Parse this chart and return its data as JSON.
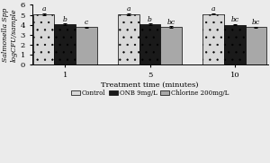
{
  "groups": [
    "1",
    "5",
    "10"
  ],
  "series": {
    "Control": {
      "values": [
        5.05,
        5.08,
        5.1
      ],
      "errors": [
        0.08,
        0.08,
        0.08
      ],
      "color": "#d8d8d8",
      "hatch": "..",
      "label": "Control"
    },
    "ONB": {
      "values": [
        4.05,
        4.05,
        4.0
      ],
      "errors": [
        0.07,
        0.07,
        0.06
      ],
      "color": "#1a1a1a",
      "hatch": "..",
      "label": "ONB 9mg/L"
    },
    "Chlorine": {
      "values": [
        3.78,
        3.8,
        3.78
      ],
      "errors": [
        0.05,
        0.05,
        0.05
      ],
      "color": "#a8a8a8",
      "hatch": "",
      "label": "Chlorine 200mg/L"
    }
  },
  "letters": {
    "Control": [
      "a",
      "a",
      "a"
    ],
    "ONB": [
      "b",
      "b",
      "bc"
    ],
    "Chlorine": [
      "c",
      "bc",
      "bc"
    ]
  },
  "xlabel": "Treatment time (minutes)",
  "ylabel": "Salmonella Spp\nlogCFU/sample",
  "ylim": [
    0,
    6
  ],
  "yticks": [
    0,
    1,
    2,
    3,
    4,
    5,
    6
  ],
  "bar_width": 0.18,
  "group_positions": [
    0.28,
    1.0,
    1.72
  ],
  "background_color": "#ebebeb",
  "legend_labels": [
    "Control",
    "ONB 9mg/L",
    "Chlorine 200mg/L"
  ]
}
